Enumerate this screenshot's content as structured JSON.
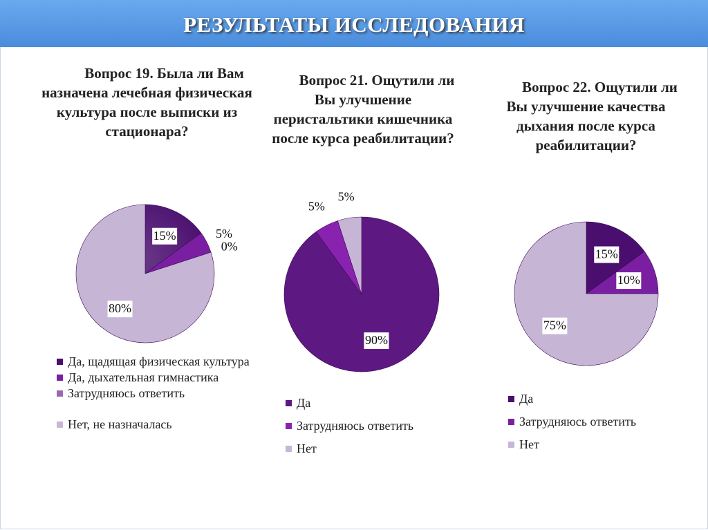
{
  "title": "РЕЗУЛЬТАТЫ ИССЛЕДОВАНИЯ",
  "chart_data": [
    {
      "type": "pie",
      "title": "Вопрос 19. Была ли Вам назначена лечебная физическая культура после выписки из стационара?",
      "categories": [
        "Да, щадящая физическая культура",
        "Да, дыхательная гимнастика",
        "Затрудняюсь ответить",
        "Нет, не назначалась"
      ],
      "values": [
        15,
        5,
        0,
        80
      ],
      "labels": [
        "15%",
        "5%",
        "0%",
        "80%"
      ],
      "colors": [
        "#4a0f6e",
        "#7b1fa2",
        "#9a68b0",
        "#c7b5d6"
      ],
      "legend": "bottom"
    },
    {
      "type": "pie",
      "title": "Вопрос 21. Ощутили ли Вы улучшение перистальтики кишечника после курса реабилитации?",
      "categories": [
        "Да",
        "Затрудняюсь ответить",
        "Нет"
      ],
      "values": [
        90,
        5,
        5
      ],
      "labels": [
        "90%",
        "5%",
        "5%"
      ],
      "colors": [
        "#5e1882",
        "#8a22b0",
        "#c7b5d6"
      ],
      "legend": "bottom"
    },
    {
      "type": "pie",
      "title": "Вопрос 22. Ощутили ли Вы улучшение качества дыхания после курса реабилитации?",
      "categories": [
        "Да",
        "Затрудняюсь ответить",
        "Нет"
      ],
      "values": [
        15,
        10,
        75
      ],
      "labels": [
        "15%",
        "10%",
        "75%"
      ],
      "colors": [
        "#4a0f6e",
        "#7b1fa2",
        "#c7b5d6"
      ],
      "legend": "bottom"
    }
  ]
}
